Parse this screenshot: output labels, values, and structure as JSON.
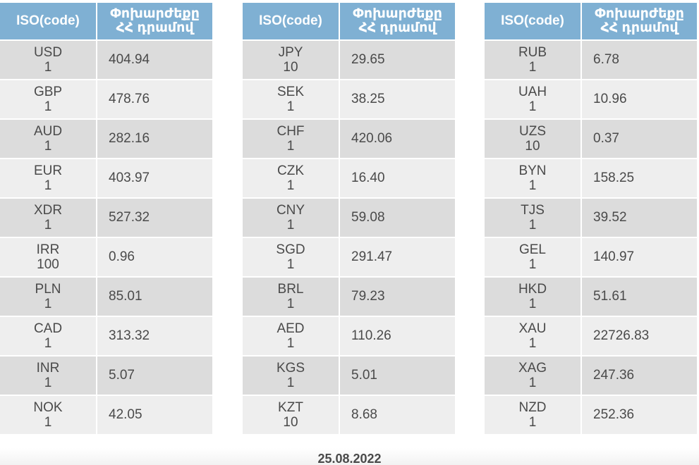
{
  "header": {
    "code_label": "ISO(code)",
    "rate_label_line1": "Փոխարժեքը",
    "rate_label_line2": "ՀՀ դրամով"
  },
  "tables": [
    {
      "rows": [
        {
          "code": "USD",
          "unit": "1",
          "rate": "404.94"
        },
        {
          "code": "GBP",
          "unit": "1",
          "rate": "478.76"
        },
        {
          "code": "AUD",
          "unit": "1",
          "rate": "282.16"
        },
        {
          "code": "EUR",
          "unit": "1",
          "rate": "403.97"
        },
        {
          "code": "XDR",
          "unit": "1",
          "rate": "527.32"
        },
        {
          "code": "IRR",
          "unit": "100",
          "rate": "0.96"
        },
        {
          "code": "PLN",
          "unit": "1",
          "rate": "85.01"
        },
        {
          "code": "CAD",
          "unit": "1",
          "rate": "313.32"
        },
        {
          "code": "INR",
          "unit": "1",
          "rate": "5.07"
        },
        {
          "code": "NOK",
          "unit": "1",
          "rate": "42.05"
        }
      ]
    },
    {
      "rows": [
        {
          "code": "JPY",
          "unit": "10",
          "rate": "29.65"
        },
        {
          "code": "SEK",
          "unit": "1",
          "rate": "38.25"
        },
        {
          "code": "CHF",
          "unit": "1",
          "rate": "420.06"
        },
        {
          "code": "CZK",
          "unit": "1",
          "rate": "16.40"
        },
        {
          "code": "CNY",
          "unit": "1",
          "rate": "59.08"
        },
        {
          "code": "SGD",
          "unit": "1",
          "rate": "291.47"
        },
        {
          "code": "BRL",
          "unit": "1",
          "rate": "79.23"
        },
        {
          "code": "AED",
          "unit": "1",
          "rate": "110.26"
        },
        {
          "code": "KGS",
          "unit": "1",
          "rate": "5.01"
        },
        {
          "code": "KZT",
          "unit": "10",
          "rate": "8.68"
        }
      ]
    },
    {
      "rows": [
        {
          "code": "RUB",
          "unit": "1",
          "rate": "6.78"
        },
        {
          "code": "UAH",
          "unit": "1",
          "rate": "10.96"
        },
        {
          "code": "UZS",
          "unit": "10",
          "rate": "0.37"
        },
        {
          "code": "BYN",
          "unit": "1",
          "rate": "158.25"
        },
        {
          "code": "TJS",
          "unit": "1",
          "rate": "39.52"
        },
        {
          "code": "GEL",
          "unit": "1",
          "rate": "140.97"
        },
        {
          "code": "HKD",
          "unit": "1",
          "rate": "51.61"
        },
        {
          "code": "XAU",
          "unit": "1",
          "rate": "22726.83"
        },
        {
          "code": "XAG",
          "unit": "1",
          "rate": "247.36"
        },
        {
          "code": "NZD",
          "unit": "1",
          "rate": "252.36"
        }
      ]
    }
  ],
  "footer": {
    "date": "25.08.2022"
  },
  "colors": {
    "header_bg": "#7fb0d3",
    "row_dark": "#dcdcdc",
    "row_light": "#eeeeee",
    "text": "#4a4a4a"
  }
}
